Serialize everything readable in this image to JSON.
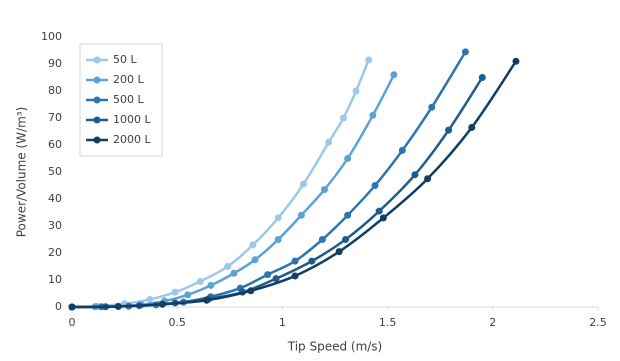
{
  "chart_data": {
    "type": "line",
    "x_label": "Tip Speed (m/s)",
    "y_label": "Power/Volume (W/m³)",
    "xlim": [
      0,
      2.5
    ],
    "xticks": [
      0,
      0.5,
      1,
      1.5,
      2,
      2.5
    ],
    "ylim": [
      0,
      100
    ],
    "yticks": [
      0,
      10,
      20,
      30,
      40,
      50,
      60,
      70,
      80,
      90,
      100
    ],
    "grid": false,
    "legend": "top-left",
    "series": [
      {
        "name": "50 L",
        "color": "#9dc8ea",
        "x": [
          0,
          0.12,
          0.25,
          0.37,
          0.49,
          0.61,
          0.74,
          0.86,
          0.98,
          1.1,
          1.22,
          1.29,
          1.35,
          1.41
        ],
        "values": [
          0,
          0.3,
          1.2,
          2.8,
          5.5,
          9.5,
          15,
          23,
          33,
          45.5,
          61,
          70,
          80,
          91.5
        ]
      },
      {
        "name": "200 L",
        "color": "#5ba3d6",
        "x": [
          0,
          0.11,
          0.22,
          0.33,
          0.44,
          0.55,
          0.66,
          0.77,
          0.87,
          0.98,
          1.09,
          1.2,
          1.31,
          1.43,
          1.53
        ],
        "values": [
          0,
          0.1,
          0.3,
          0.8,
          2.2,
          4.5,
          8,
          12.5,
          17.5,
          25,
          34,
          43.5,
          55,
          71,
          86
        ]
      },
      {
        "name": "500 L",
        "color": "#2e75b0",
        "x": [
          0,
          0.14,
          0.27,
          0.4,
          0.53,
          0.66,
          0.8,
          0.93,
          1.06,
          1.19,
          1.31,
          1.44,
          1.57,
          1.71,
          1.87
        ],
        "values": [
          0,
          0.1,
          0.3,
          0.8,
          1.8,
          3.8,
          7,
          12,
          17,
          25,
          34,
          45,
          58,
          74,
          94.5
        ]
      },
      {
        "name": "1000 L",
        "color": "#1f5c8c",
        "x": [
          0,
          0.16,
          0.32,
          0.49,
          0.65,
          0.81,
          0.97,
          1.14,
          1.3,
          1.46,
          1.63,
          1.79,
          1.95
        ],
        "values": [
          0,
          0.1,
          0.5,
          1.5,
          3,
          5.5,
          10.5,
          17,
          25,
          35.5,
          49,
          65.5,
          85
        ]
      },
      {
        "name": "2000 L",
        "color": "#143d62",
        "x": [
          0,
          0.22,
          0.43,
          0.64,
          0.85,
          1.06,
          1.27,
          1.48,
          1.69,
          1.9,
          2.11
        ],
        "values": [
          0,
          0.2,
          1,
          2.5,
          6,
          11.5,
          20.5,
          33,
          47.5,
          66.5,
          91
        ]
      }
    ]
  }
}
